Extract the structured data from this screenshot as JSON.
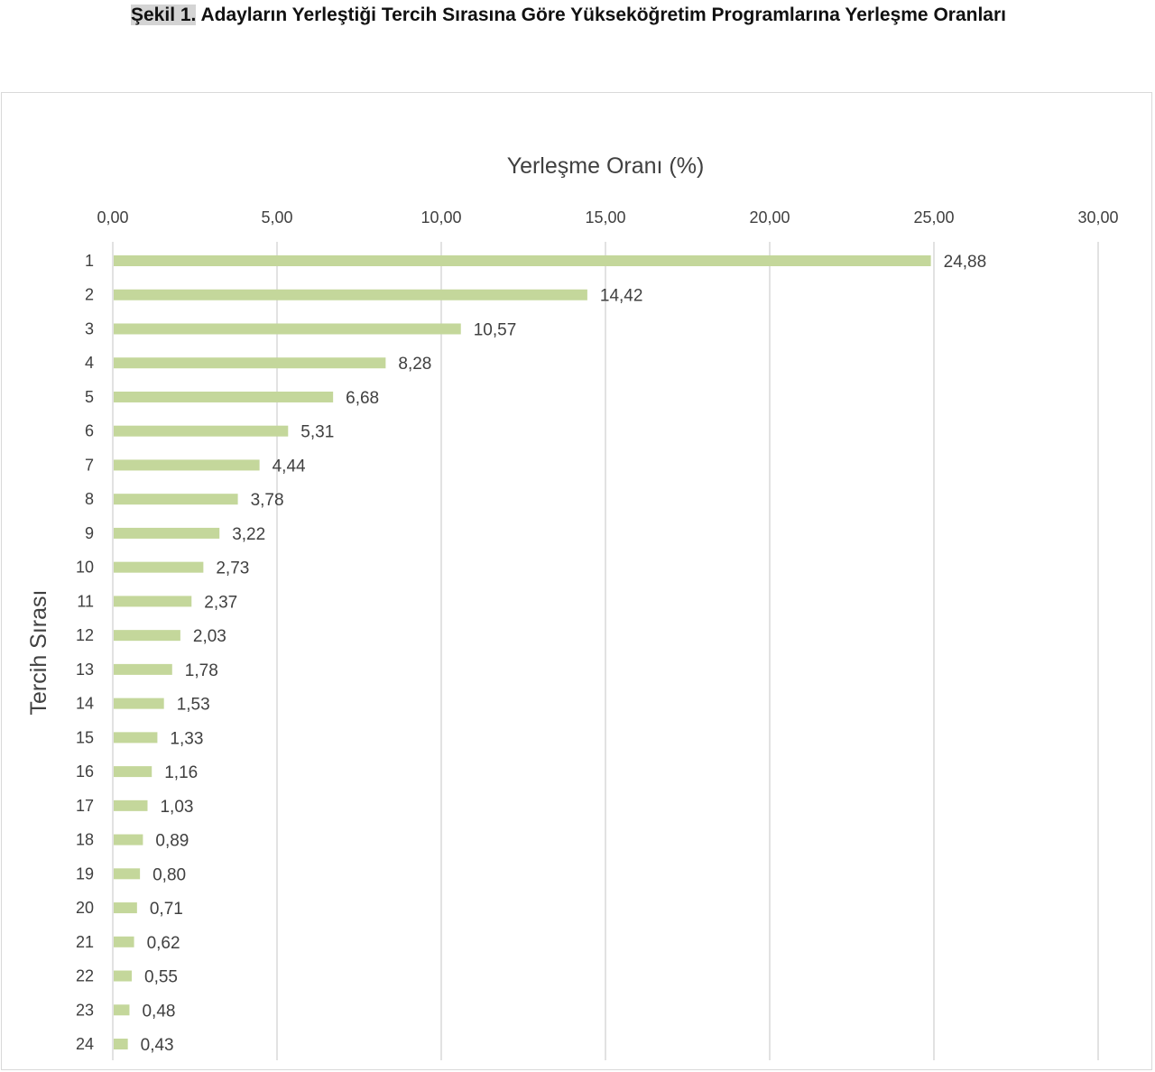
{
  "figure": {
    "label": "Şekil 1.",
    "caption": "Adayların Yerleştiği Tercih Sırasına Göre Yükseköğretim Programlarına Yerleşme Oranları"
  },
  "chart_data": {
    "type": "bar",
    "orientation": "horizontal",
    "xlabel": "Yerleşme Oranı (%)",
    "ylabel": "Tercih Sırası",
    "xlim": [
      0,
      30
    ],
    "x_ticks": [
      "0,00",
      "5,00",
      "10,00",
      "15,00",
      "20,00",
      "25,00",
      "30,00"
    ],
    "x_tick_values": [
      0,
      5,
      10,
      15,
      20,
      25,
      30
    ],
    "x_axis_position": "top",
    "grid": true,
    "bar_color": "#c4d79b",
    "categories": [
      "1",
      "2",
      "3",
      "4",
      "5",
      "6",
      "7",
      "8",
      "9",
      "10",
      "11",
      "12",
      "13",
      "14",
      "15",
      "16",
      "17",
      "18",
      "19",
      "20",
      "21",
      "22",
      "23",
      "24"
    ],
    "values": [
      24.88,
      14.42,
      10.57,
      8.28,
      6.68,
      5.31,
      4.44,
      3.78,
      3.22,
      2.73,
      2.37,
      2.03,
      1.78,
      1.53,
      1.33,
      1.16,
      1.03,
      0.89,
      0.8,
      0.71,
      0.62,
      0.55,
      0.48,
      0.43
    ],
    "data_labels": [
      "24,88",
      "14,42",
      "10,57",
      "8,28",
      "6,68",
      "5,31",
      "4,44",
      "3,78",
      "3,22",
      "2,73",
      "2,37",
      "2,03",
      "1,78",
      "1,53",
      "1,33",
      "1,16",
      "1,03",
      "0,89",
      "0,80",
      "0,71",
      "0,62",
      "0,55",
      "0,48",
      "0,43"
    ]
  }
}
